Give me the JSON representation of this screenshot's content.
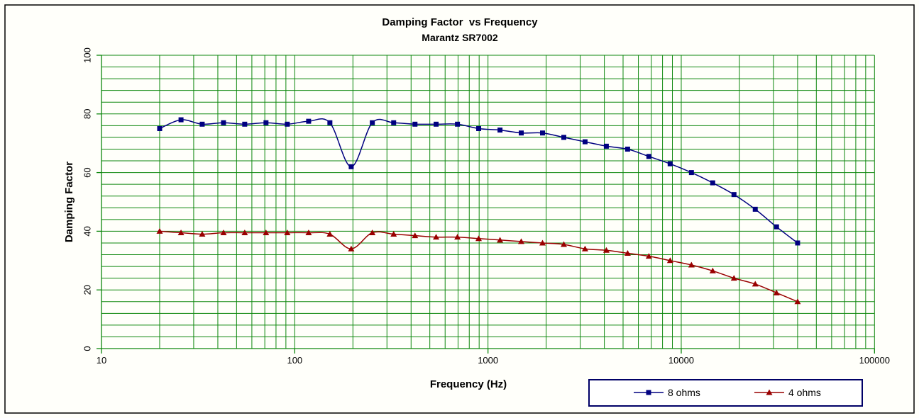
{
  "figure": {
    "background": "#fffffa",
    "outer_border_color": "#000000",
    "legend_border_color": "#000066"
  },
  "chart_data": {
    "type": "line",
    "title": "Damping Factor  vs Frequency",
    "subtitle": "Marantz SR7002",
    "xlabel": "Frequency (Hz)",
    "ylabel": "Damping Factor",
    "x_scale": "log",
    "xlim": [
      10,
      100000
    ],
    "ylim": [
      0,
      100
    ],
    "x_major_ticks": [
      10,
      100,
      1000,
      10000,
      100000
    ],
    "x_tick_labels": [
      "10",
      "100",
      "1000",
      "10000",
      "100000"
    ],
    "y_major_ticks": [
      0,
      20,
      40,
      60,
      80,
      100
    ],
    "y_minor_step": 4,
    "grid": true,
    "grid_color": "#0d870d",
    "legend_position": "bottom-right",
    "x": [
      20,
      25.8,
      33.2,
      42.8,
      55.1,
      71,
      91.5,
      118,
      152,
      196,
      252,
      325,
      419,
      539,
      695,
      895,
      1154,
      1486,
      1915,
      2468,
      3179,
      4096,
      5278,
      6800,
      8762,
      11289,
      14546,
      18742,
      24148,
      31113,
      40000
    ],
    "series": [
      {
        "name": "8 ohms",
        "color": "#000080",
        "marker": "square",
        "values": [
          75,
          78,
          76.5,
          77,
          76.5,
          77,
          76.5,
          77.5,
          77,
          62,
          77,
          77,
          76.5,
          76.5,
          76.5,
          75,
          74.5,
          73.5,
          73.5,
          72,
          70.5,
          69,
          68,
          65.5,
          63,
          60,
          56.5,
          52.5,
          47.5,
          41.5,
          36
        ]
      },
      {
        "name": "4 ohms",
        "color": "#990000",
        "marker": "triangle",
        "values": [
          40,
          39.5,
          39,
          39.5,
          39.5,
          39.5,
          39.5,
          39.5,
          39,
          34,
          39.5,
          39,
          38.5,
          38,
          38,
          37.5,
          37,
          36.5,
          36,
          35.5,
          34,
          33.5,
          32.5,
          31.5,
          30,
          28.5,
          26.5,
          24,
          22,
          19,
          16
        ]
      }
    ]
  }
}
